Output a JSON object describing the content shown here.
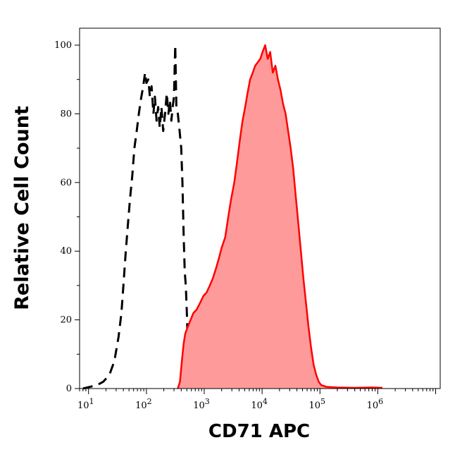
{
  "chart_data": {
    "type": "area",
    "xlabel": "CD71 APC",
    "ylabel": "Relative Cell Count",
    "x_scale": "log",
    "xlim": [
      7,
      12000000
    ],
    "ylim": [
      0,
      100
    ],
    "x_ticks": [
      {
        "value": 10,
        "base": "10",
        "exp": "1"
      },
      {
        "value": 100,
        "base": "10",
        "exp": "2"
      },
      {
        "value": 1000,
        "base": "10",
        "exp": "3"
      },
      {
        "value": 10000,
        "base": "10",
        "exp": "4"
      },
      {
        "value": 100000,
        "base": "10",
        "exp": "5"
      },
      {
        "value": 1000000,
        "base": "10",
        "exp": "6"
      }
    ],
    "y_ticks": [
      "0",
      "20",
      "40",
      "60",
      "80",
      "100"
    ],
    "y_tick_values": [
      0,
      20,
      40,
      60,
      80,
      100
    ],
    "grid": false,
    "series": [
      {
        "style": "dashed",
        "color": "#000000",
        "points": [
          [
            8,
            0
          ],
          [
            14,
            1
          ],
          [
            18,
            2
          ],
          [
            23,
            4
          ],
          [
            28,
            8
          ],
          [
            33,
            15
          ],
          [
            37,
            22
          ],
          [
            40,
            30
          ],
          [
            44,
            40
          ],
          [
            48,
            48
          ],
          [
            52,
            55
          ],
          [
            57,
            62
          ],
          [
            62,
            70
          ],
          [
            68,
            75
          ],
          [
            74,
            80
          ],
          [
            80,
            84
          ],
          [
            88,
            88
          ],
          [
            95,
            92
          ],
          [
            100,
            89
          ],
          [
            108,
            90
          ],
          [
            115,
            85
          ],
          [
            123,
            88
          ],
          [
            132,
            80
          ],
          [
            140,
            85
          ],
          [
            150,
            78
          ],
          [
            160,
            82
          ],
          [
            170,
            76
          ],
          [
            182,
            82
          ],
          [
            195,
            75
          ],
          [
            210,
            80
          ],
          [
            225,
            86
          ],
          [
            240,
            80
          ],
          [
            255,
            84
          ],
          [
            270,
            78
          ],
          [
            285,
            82
          ],
          [
            300,
            85
          ],
          [
            315,
            100
          ],
          [
            330,
            82
          ],
          [
            350,
            80
          ],
          [
            375,
            75
          ],
          [
            400,
            70
          ],
          [
            420,
            60
          ],
          [
            440,
            45
          ],
          [
            460,
            34
          ],
          [
            480,
            30
          ],
          [
            500,
            22
          ],
          [
            520,
            12
          ],
          [
            540,
            18
          ],
          [
            560,
            10
          ],
          [
            580,
            6
          ],
          [
            600,
            3
          ],
          [
            650,
            1
          ],
          [
            700,
            0
          ],
          [
            800,
            0
          ]
        ]
      },
      {
        "style": "solid",
        "color": "#ff0000",
        "fill": "#ff9a9a",
        "points": [
          [
            350,
            0
          ],
          [
            380,
            2
          ],
          [
            410,
            8
          ],
          [
            440,
            13
          ],
          [
            470,
            16
          ],
          [
            520,
            18
          ],
          [
            580,
            20
          ],
          [
            650,
            22
          ],
          [
            740,
            23
          ],
          [
            850,
            25
          ],
          [
            970,
            27
          ],
          [
            1100,
            28
          ],
          [
            1250,
            30
          ],
          [
            1400,
            32
          ],
          [
            1600,
            35
          ],
          [
            1800,
            38
          ],
          [
            2000,
            41
          ],
          [
            2300,
            44
          ],
          [
            2600,
            50
          ],
          [
            2900,
            55
          ],
          [
            3300,
            60
          ],
          [
            3700,
            66
          ],
          [
            4100,
            72
          ],
          [
            4600,
            78
          ],
          [
            5100,
            82
          ],
          [
            5600,
            86
          ],
          [
            6200,
            90
          ],
          [
            6900,
            92
          ],
          [
            7600,
            94
          ],
          [
            8400,
            95
          ],
          [
            9300,
            96
          ],
          [
            10200,
            98
          ],
          [
            11300,
            100
          ],
          [
            12500,
            96
          ],
          [
            13800,
            98
          ],
          [
            15300,
            92
          ],
          [
            17000,
            94
          ],
          [
            18800,
            90
          ],
          [
            20800,
            87
          ],
          [
            23000,
            83
          ],
          [
            25500,
            80
          ],
          [
            28200,
            75
          ],
          [
            31200,
            70
          ],
          [
            34500,
            64
          ],
          [
            38200,
            56
          ],
          [
            42300,
            48
          ],
          [
            46800,
            40
          ],
          [
            51800,
            32
          ],
          [
            57300,
            25
          ],
          [
            63400,
            18
          ],
          [
            70200,
            12
          ],
          [
            77700,
            7
          ],
          [
            86000,
            4
          ],
          [
            95200,
            2
          ],
          [
            105000,
            1
          ],
          [
            130000,
            0.5
          ],
          [
            200000,
            0.3
          ],
          [
            400000,
            0.2
          ],
          [
            800000,
            0.3
          ],
          [
            1200000,
            0.2
          ]
        ]
      }
    ]
  }
}
